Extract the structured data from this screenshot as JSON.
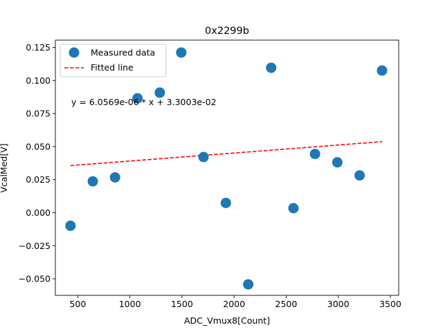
{
  "chart_data": {
    "type": "scatter",
    "title": "0x2299b",
    "xlabel": "ADC_Vmux8[Count]",
    "ylabel": "VcalMed[V]",
    "xlim": [
      285,
      3580
    ],
    "ylim": [
      -0.0625,
      0.1305
    ],
    "xticks": [
      500,
      1000,
      1500,
      2000,
      2500,
      3000,
      3500
    ],
    "xtick_labels": [
      "500",
      "1000",
      "1500",
      "2000",
      "2500",
      "3000",
      "3500"
    ],
    "yticks": [
      -0.05,
      -0.025,
      0.0,
      0.025,
      0.05,
      0.075,
      0.1,
      0.125
    ],
    "ytick_labels": [
      "−0.050",
      "−0.025",
      "0.000",
      "0.025",
      "0.050",
      "0.075",
      "0.100",
      "0.125"
    ],
    "series": [
      {
        "name": "Measured data",
        "kind": "scatter",
        "color": "#1f77b4",
        "points": [
          {
            "x": 430,
            "y": -0.0099
          },
          {
            "x": 644,
            "y": 0.0237
          },
          {
            "x": 858,
            "y": 0.0267
          },
          {
            "x": 1073,
            "y": 0.0865
          },
          {
            "x": 1287,
            "y": 0.0908
          },
          {
            "x": 1493,
            "y": 0.1211
          },
          {
            "x": 1707,
            "y": 0.0421
          },
          {
            "x": 1921,
            "y": 0.0074
          },
          {
            "x": 2136,
            "y": -0.0542
          },
          {
            "x": 2356,
            "y": 0.1096
          },
          {
            "x": 2570,
            "y": 0.0034
          },
          {
            "x": 2777,
            "y": 0.0444
          },
          {
            "x": 2991,
            "y": 0.0381
          },
          {
            "x": 3205,
            "y": 0.0282
          },
          {
            "x": 3420,
            "y": 0.1075
          }
        ]
      },
      {
        "name": "Fitted line",
        "kind": "line",
        "style": "dashed",
        "color": "#ff0000",
        "points": [
          {
            "x": 430,
            "y": 0.03561
          },
          {
            "x": 3420,
            "y": 0.05372
          }
        ]
      }
    ],
    "annotation": "y = 6.0569e-06 * x + 3.3003e-02",
    "legend": {
      "location": "top-left",
      "entries": [
        "Measured data",
        "Fitted line"
      ]
    }
  }
}
